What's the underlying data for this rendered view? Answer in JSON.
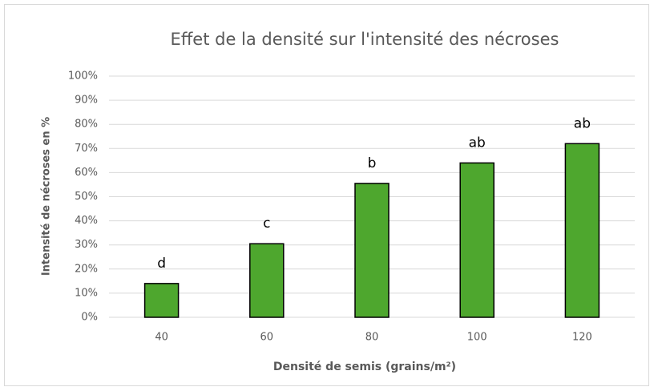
{
  "chart_data": {
    "type": "bar",
    "title": "Effet de la densité sur l'intensité des nécroses",
    "x_label": "Densité de semis (grains/m²)",
    "y_label": "Intensité de nécroses en %",
    "categories": [
      "40",
      "60",
      "80",
      "100",
      "120"
    ],
    "values": [
      14,
      30.5,
      55.5,
      64,
      72
    ],
    "annotations": [
      "d",
      "c",
      "b",
      "ab",
      "ab"
    ],
    "color": "#4ea72e",
    "ylim": [
      0,
      100
    ],
    "yticks": [
      {
        "value": 0,
        "label": "0%"
      },
      {
        "value": 10,
        "label": "10%"
      },
      {
        "value": 20,
        "label": "20%"
      },
      {
        "value": 30,
        "label": "30%"
      },
      {
        "value": 40,
        "label": "40%"
      },
      {
        "value": 50,
        "label": "50%"
      },
      {
        "value": 60,
        "label": "60%"
      },
      {
        "value": 70,
        "label": "70%"
      },
      {
        "value": 80,
        "label": "80%"
      },
      {
        "value": 90,
        "label": "90%"
      },
      {
        "value": 100,
        "label": "100%"
      }
    ],
    "grid": true
  }
}
